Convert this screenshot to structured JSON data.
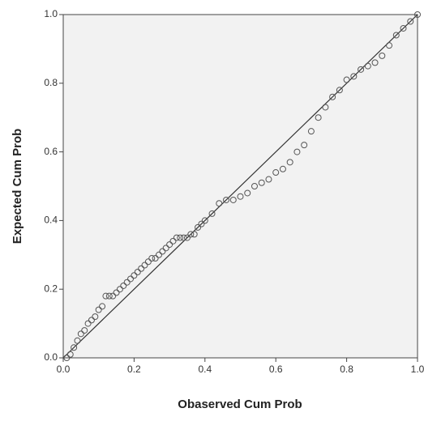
{
  "chart_data": {
    "type": "scatter",
    "x_label": "Obaserved Cum Prob",
    "y_label": "Expected Cum Prob",
    "xlim": [
      0,
      1
    ],
    "ylim": [
      0,
      1
    ],
    "xticks": [
      {
        "value": 0,
        "label": "0.0"
      },
      0.2,
      0.4,
      0.6,
      0.8,
      {
        "value": 1,
        "label": "1.0"
      }
    ],
    "yticks": [
      {
        "value": 0,
        "label": "0.0"
      },
      0.2,
      0.4,
      0.6,
      0.8,
      {
        "value": 1,
        "label": "1.0"
      }
    ],
    "color": "#555555",
    "x": [
      0.01,
      0.02,
      0.03,
      0.04,
      0.05,
      0.06,
      0.07,
      0.08,
      0.09,
      0.1,
      0.11,
      0.12,
      0.13,
      0.14,
      0.15,
      0.16,
      0.17,
      0.18,
      0.19,
      0.2,
      0.21,
      0.22,
      0.23,
      0.24,
      0.25,
      0.26,
      0.27,
      0.28,
      0.29,
      0.3,
      0.31,
      0.32,
      0.33,
      0.34,
      0.35,
      0.36,
      0.37,
      0.38,
      0.39,
      0.4,
      0.42,
      0.44,
      0.46,
      0.48,
      0.5,
      0.52,
      0.54,
      0.56,
      0.58,
      0.6,
      0.62,
      0.64,
      0.66,
      0.68,
      0.7,
      0.72,
      0.74,
      0.76,
      0.78,
      0.8,
      0.82,
      0.84,
      0.86,
      0.88,
      0.9,
      0.92,
      0.94,
      0.96,
      0.98,
      1.0
    ],
    "y": [
      0.0,
      0.01,
      0.03,
      0.05,
      0.07,
      0.08,
      0.1,
      0.11,
      0.12,
      0.14,
      0.15,
      0.18,
      0.18,
      0.18,
      0.19,
      0.2,
      0.21,
      0.22,
      0.23,
      0.24,
      0.25,
      0.26,
      0.27,
      0.28,
      0.29,
      0.29,
      0.3,
      0.31,
      0.32,
      0.33,
      0.34,
      0.35,
      0.35,
      0.35,
      0.35,
      0.36,
      0.36,
      0.38,
      0.39,
      0.4,
      0.42,
      0.45,
      0.46,
      0.46,
      0.47,
      0.48,
      0.5,
      0.51,
      0.52,
      0.54,
      0.55,
      0.57,
      0.6,
      0.62,
      0.66,
      0.7,
      0.73,
      0.76,
      0.78,
      0.81,
      0.82,
      0.84,
      0.85,
      0.86,
      0.88,
      0.91,
      0.94,
      0.96,
      0.98,
      1.0
    ]
  }
}
